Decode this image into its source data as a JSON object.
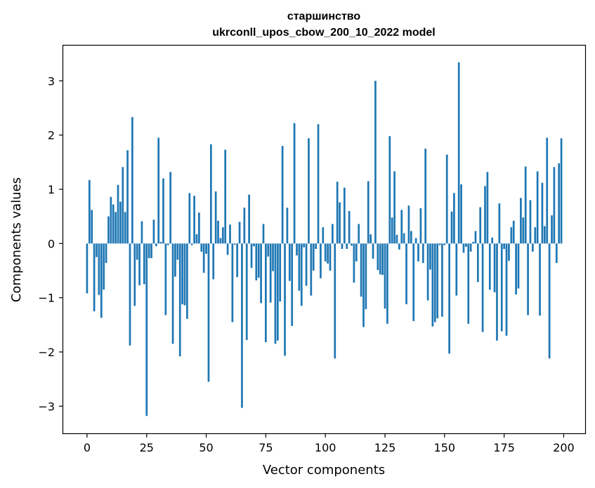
{
  "chart_data": {
    "type": "bar",
    "title_line1": "старшинство",
    "title_line2": "ukrconll_upos_cbow_200_10_2022 model",
    "xlabel": "Vector components",
    "ylabel": "Components values",
    "xlim": [
      -10,
      209
    ],
    "ylim": [
      -3.5,
      3.65
    ],
    "xticks": [
      0,
      25,
      50,
      75,
      100,
      125,
      150,
      175,
      200
    ],
    "xtick_labels": [
      "0",
      "25",
      "50",
      "75",
      "100",
      "125",
      "150",
      "175",
      "200"
    ],
    "yticks": [
      -3,
      -2,
      -1,
      0,
      1,
      2,
      3
    ],
    "ytick_labels": [
      "−3",
      "−2",
      "−1",
      "0",
      "1",
      "2",
      "3"
    ],
    "bar_color": "#1f77b4",
    "grid": false,
    "values": [
      -0.92,
      1.17,
      0.62,
      -1.25,
      -0.25,
      -0.95,
      -1.37,
      -0.85,
      -0.36,
      0.5,
      0.86,
      0.72,
      0.58,
      1.08,
      0.77,
      1.41,
      0.58,
      1.72,
      -1.88,
      2.33,
      -1.15,
      -0.3,
      -0.77,
      0.41,
      -0.75,
      -3.18,
      -0.27,
      -0.27,
      0.44,
      -0.05,
      1.95,
      0.03,
      1.2,
      -1.32,
      -0.03,
      1.32,
      -1.85,
      -0.61,
      -0.3,
      -2.08,
      -1.12,
      -1.14,
      -1.39,
      0.93,
      -0.03,
      0.88,
      0.17,
      0.57,
      -0.15,
      -0.54,
      -0.19,
      -2.55,
      1.83,
      -0.66,
      0.96,
      0.42,
      0.1,
      0.3,
      1.73,
      -0.21,
      0.35,
      -1.45,
      -0.02,
      -0.62,
      0.4,
      -3.03,
      0.66,
      -1.78,
      0.9,
      -0.45,
      -0.05,
      -0.68,
      -0.63,
      -1.1,
      0.36,
      -1.82,
      -0.24,
      -1.09,
      -0.51,
      -1.85,
      -1.79,
      -1.07,
      1.8,
      -2.07,
      0.66,
      -0.69,
      -1.52,
      2.22,
      -0.22,
      -0.87,
      -1.15,
      -0.07,
      -0.78,
      1.94,
      -0.96,
      -0.5,
      -0.1,
      2.2,
      -0.64,
      0.3,
      -0.33,
      -0.37,
      -0.5,
      0.36,
      -2.12,
      1.14,
      0.76,
      -0.1,
      1.03,
      -0.1,
      0.6,
      -0.04,
      -0.72,
      -0.33,
      0.36,
      -0.98,
      -1.54,
      -1.21,
      1.15,
      0.17,
      -0.28,
      3.0,
      -0.49,
      -0.57,
      -0.58,
      -1.2,
      -1.48,
      1.98,
      0.48,
      1.33,
      0.16,
      -0.11,
      0.62,
      0.19,
      -1.12,
      0.7,
      0.23,
      -1.43,
      0.1,
      -0.33,
      0.65,
      -0.36,
      1.75,
      -1.05,
      -0.48,
      -1.53,
      -1.45,
      -1.38,
      -0.03,
      -1.35,
      -0.03,
      1.64,
      -2.03,
      0.59,
      0.93,
      -0.96,
      3.34,
      1.09,
      -0.17,
      -0.06,
      -1.48,
      -0.15,
      0.03,
      0.23,
      -0.71,
      0.67,
      -1.63,
      1.06,
      1.32,
      -0.85,
      0.11,
      -0.9,
      -1.79,
      0.74,
      -1.62,
      -0.1,
      -1.7,
      -0.32,
      0.3,
      0.42,
      -0.94,
      -0.83,
      0.84,
      0.48,
      1.42,
      -1.32,
      0.8,
      -0.15,
      0.3,
      1.33,
      -1.33,
      1.12,
      0.32,
      1.95,
      -2.12,
      0.52,
      1.41,
      -0.36,
      1.48,
      1.94
    ]
  }
}
